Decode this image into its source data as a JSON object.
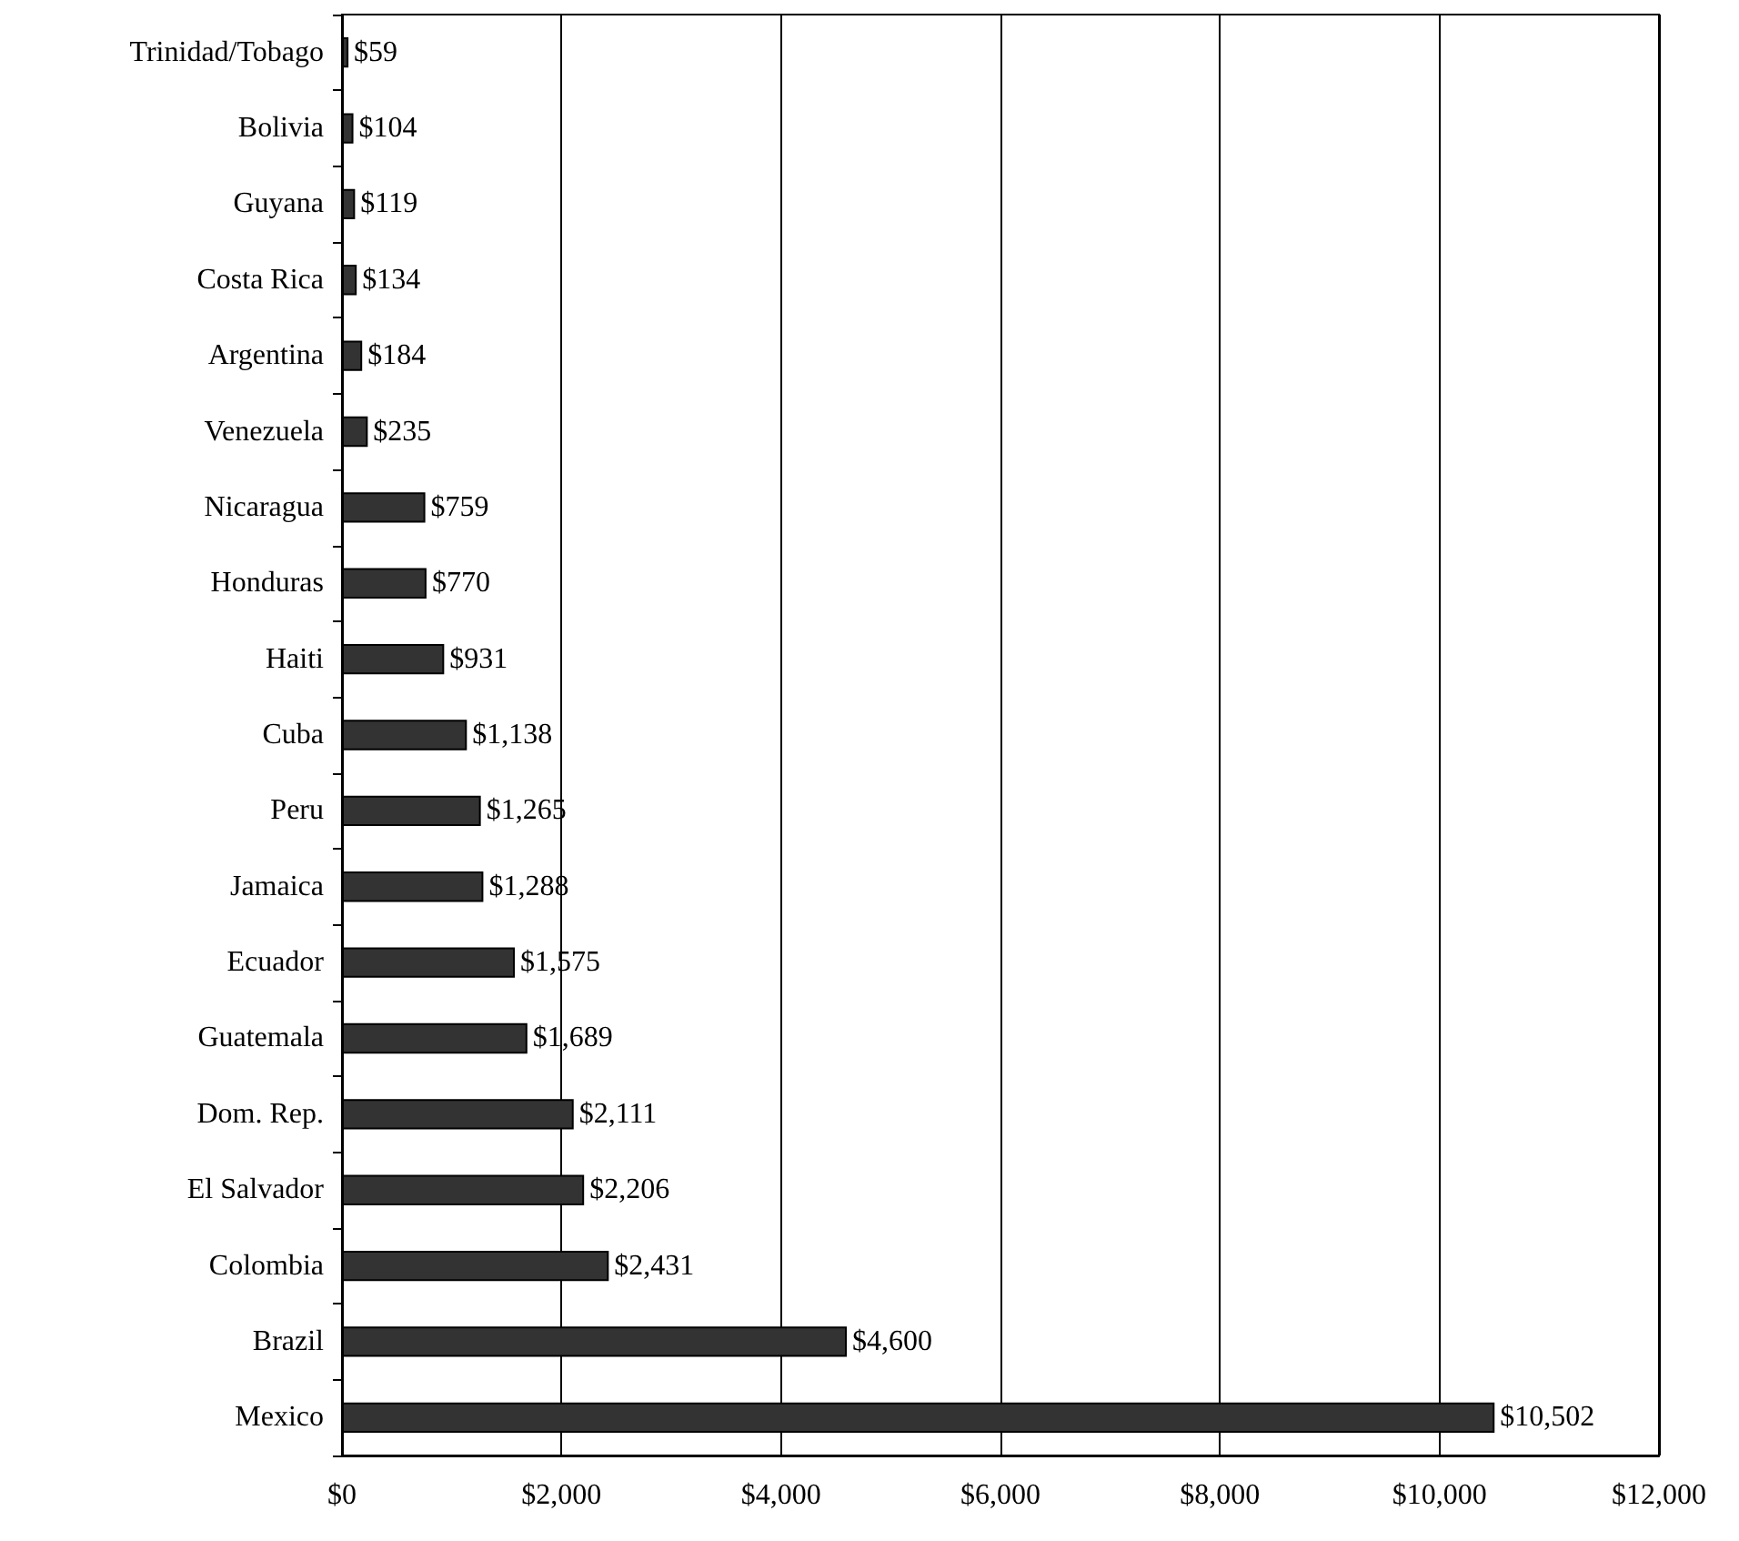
{
  "chart_data": {
    "type": "bar",
    "orientation": "horizontal",
    "categories": [
      "Trinidad/Tobago",
      "Bolivia",
      "Guyana",
      "Costa Rica",
      "Argentina",
      "Venezuela",
      "Nicaragua",
      "Honduras",
      "Haiti",
      "Cuba",
      "Peru",
      "Jamaica",
      "Ecuador",
      "Guatemala",
      "Dom. Rep.",
      "El Salvador",
      "Colombia",
      "Brazil",
      "Mexico"
    ],
    "values": [
      59,
      104,
      119,
      134,
      184,
      235,
      759,
      770,
      931,
      1138,
      1265,
      1288,
      1575,
      1689,
      2111,
      2206,
      2431,
      4600,
      10502
    ],
    "value_labels": [
      "$59",
      "$104",
      "$119",
      "$134",
      "$184",
      "$235",
      "$759",
      "$770",
      "$931",
      "$1,138",
      "$1,265",
      "$1,288",
      "$1,575",
      "$1,689",
      "$2,111",
      "$2,206",
      "$2,431",
      "$4,600",
      "$10,502"
    ],
    "color": "#333333",
    "xlim": [
      0,
      12000
    ],
    "xticks": [
      {
        "value": 0,
        "label": "$0"
      },
      {
        "value": 2000,
        "label": "$2,000"
      },
      {
        "value": 4000,
        "label": "$4,000"
      },
      {
        "value": 6000,
        "label": "$6,000"
      },
      {
        "value": 8000,
        "label": "$8,000"
      },
      {
        "value": 10000,
        "label": "$10,000"
      },
      {
        "value": 12000,
        "label": "$12,000"
      }
    ],
    "grid": "x"
  }
}
